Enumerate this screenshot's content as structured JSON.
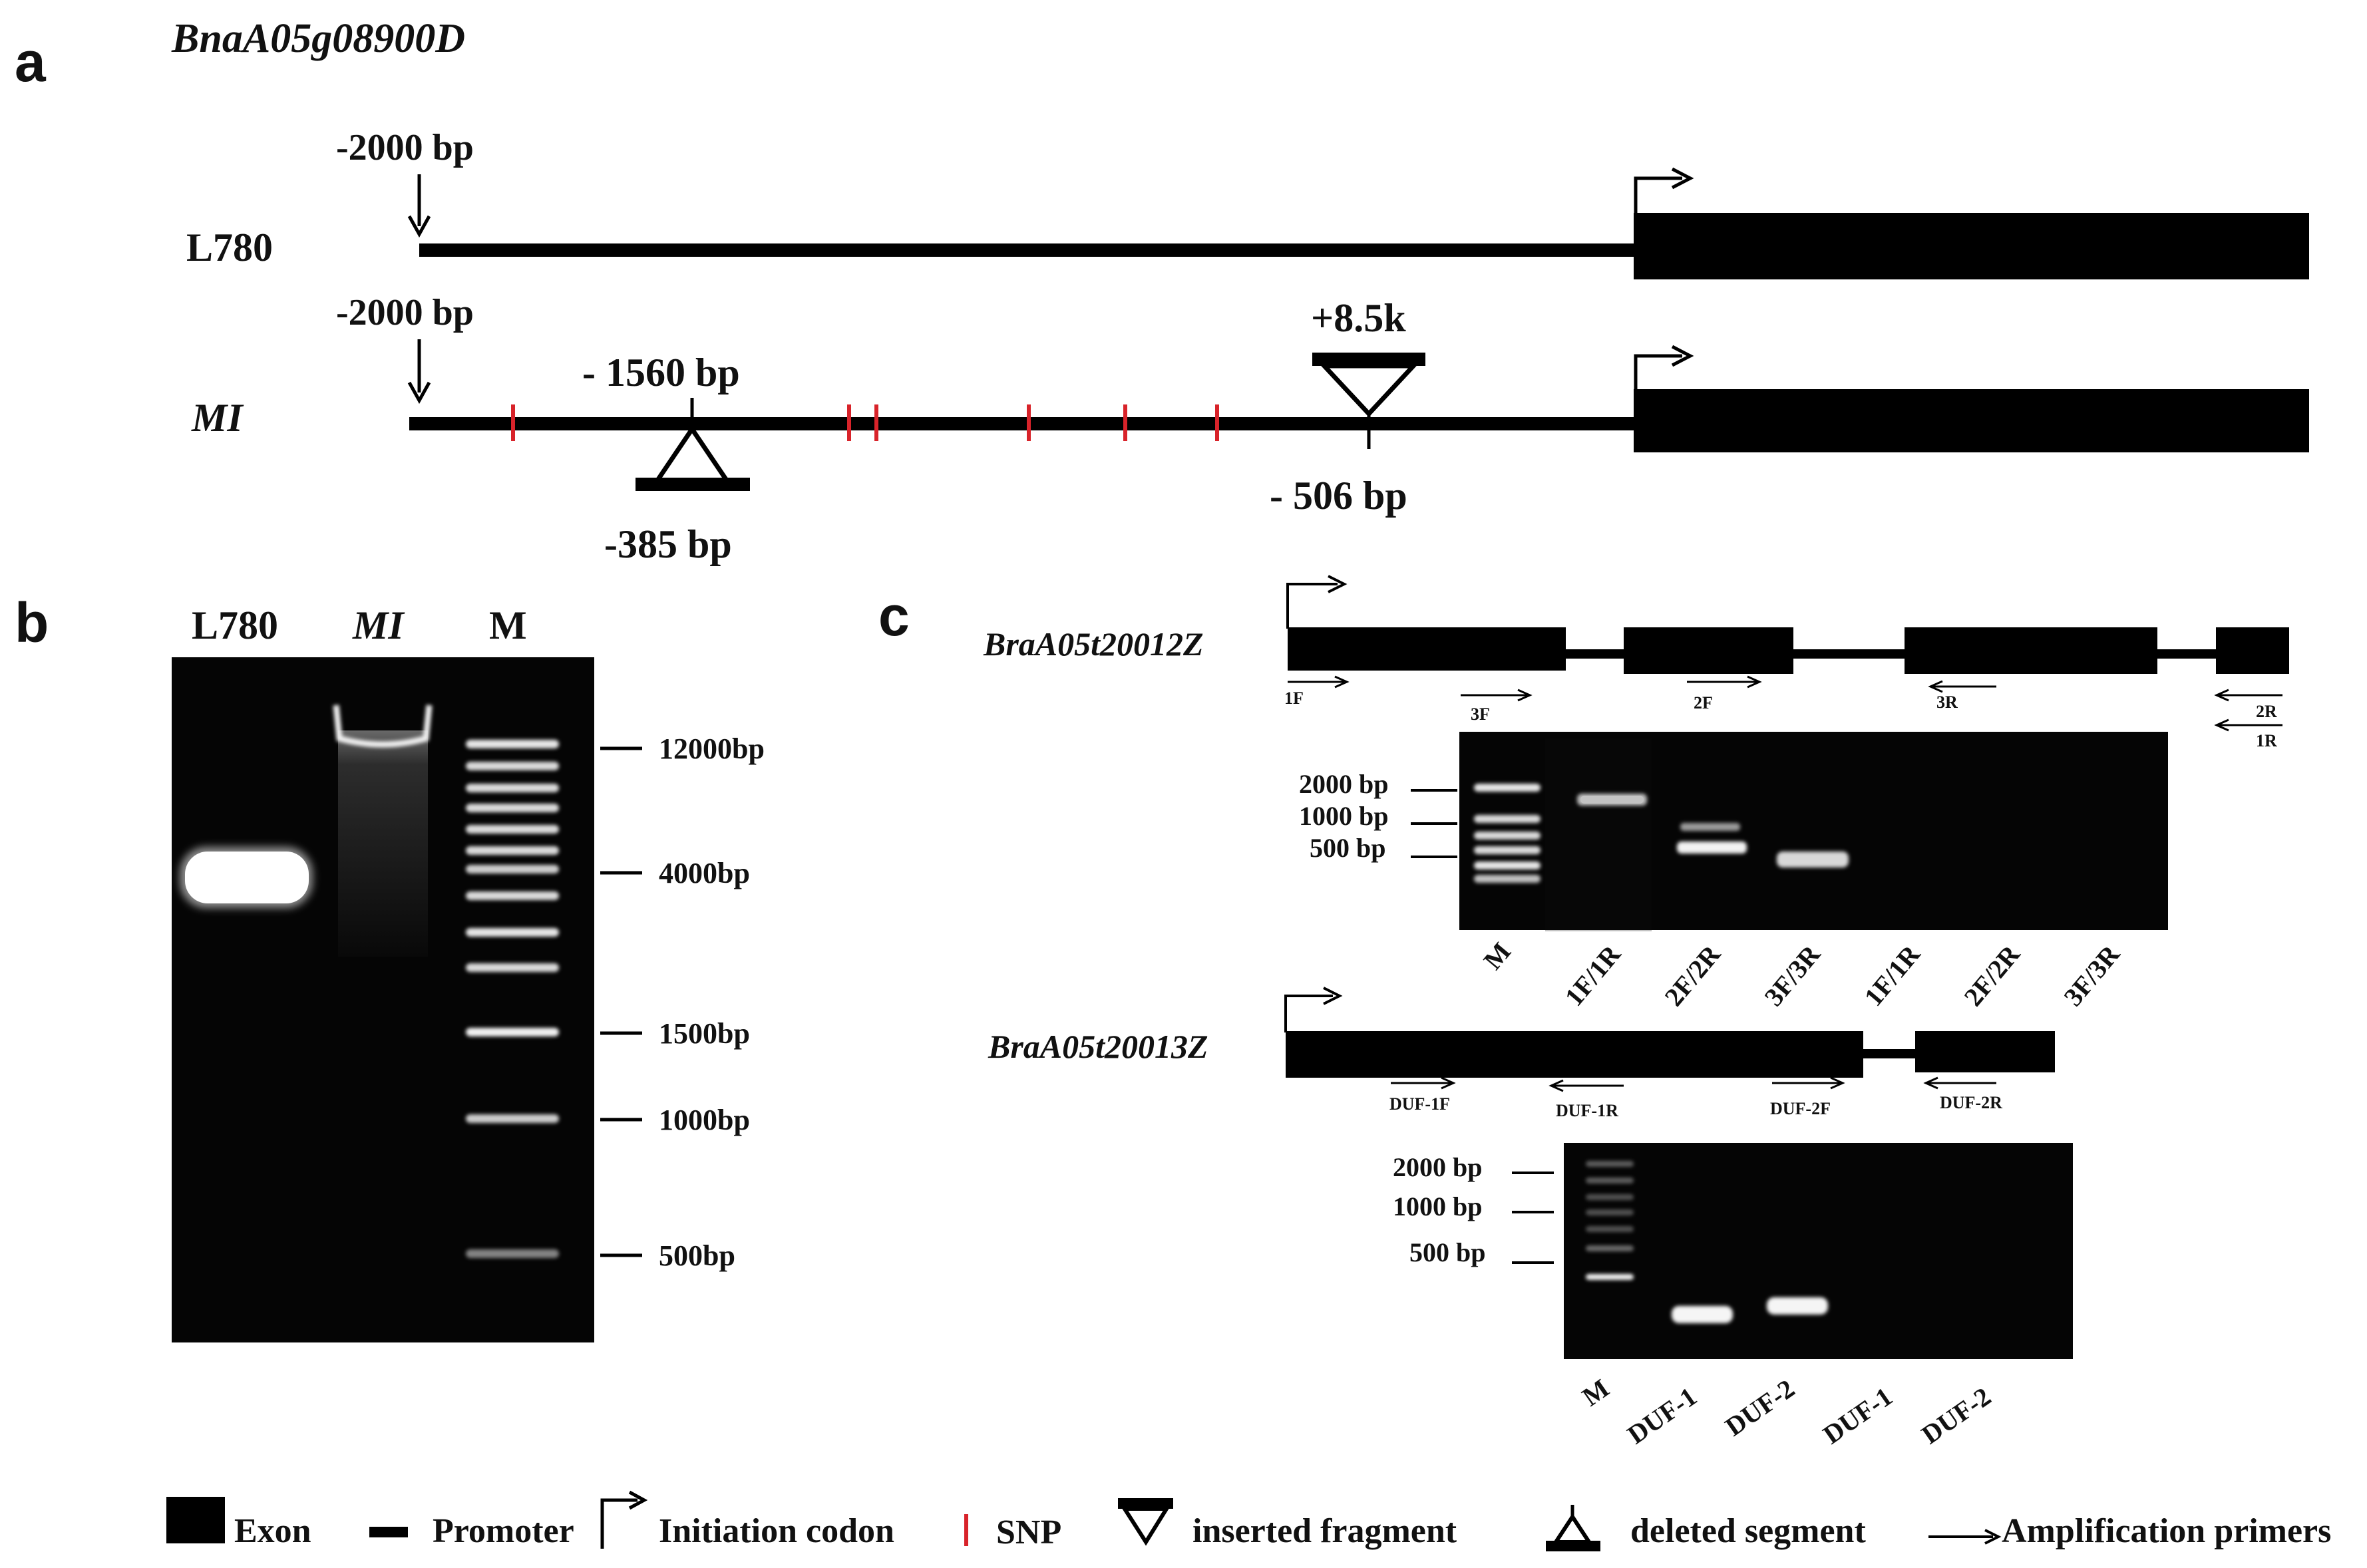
{
  "panels": {
    "a": "a",
    "b": "b",
    "c": "c"
  },
  "panel_a": {
    "gene": "BnaA05g08900D",
    "row_l780": {
      "label": "L780",
      "start_label": "-2000 bp"
    },
    "row_mi": {
      "label": "MI",
      "start_label": "-2000 bp",
      "deletion_pos_label": "- 1560 bp",
      "deletion_size_label": "-385 bp",
      "insertion_size_label": "+8.5k",
      "insertion_pos_label": "- 506 bp"
    }
  },
  "panel_b": {
    "lanes": [
      "L780",
      "MI",
      "M"
    ],
    "markers": [
      "12000bp",
      "4000bp",
      "1500bp",
      "1000bp",
      "500bp"
    ]
  },
  "panel_c": {
    "gene1": "BraA05t20012Z",
    "gene1_primers": [
      "1F",
      "3F",
      "2F",
      "3R",
      "2R",
      "1R"
    ],
    "gel1_markers": [
      "2000 bp",
      "1000 bp",
      "500 bp"
    ],
    "gel1_lanes": [
      "M",
      "1F/1R",
      "2F/2R",
      "3F/3R",
      "1F/1R",
      "2F/2R",
      "3F/3R"
    ],
    "gene2": "BraA05t20013Z",
    "gene2_primers": [
      "DUF-1F",
      "DUF-1R",
      "DUF-2F",
      "DUF-2R"
    ],
    "gel2_markers": [
      "2000 bp",
      "1000 bp",
      "500 bp"
    ],
    "gel2_lanes": [
      "M",
      "DUF-1",
      "DUF-2",
      "DUF-1",
      "DUF-2"
    ]
  },
  "legend": {
    "exon": "Exon",
    "promoter": "Promoter",
    "initiation": "Initiation codon",
    "snp": "SNP",
    "inserted": "inserted fragment",
    "deleted": "deleted segment",
    "primers": "Amplification primers"
  },
  "colors": {
    "snp": "#d8232a",
    "gel_bg": "#050505",
    "ink": "#000000"
  }
}
